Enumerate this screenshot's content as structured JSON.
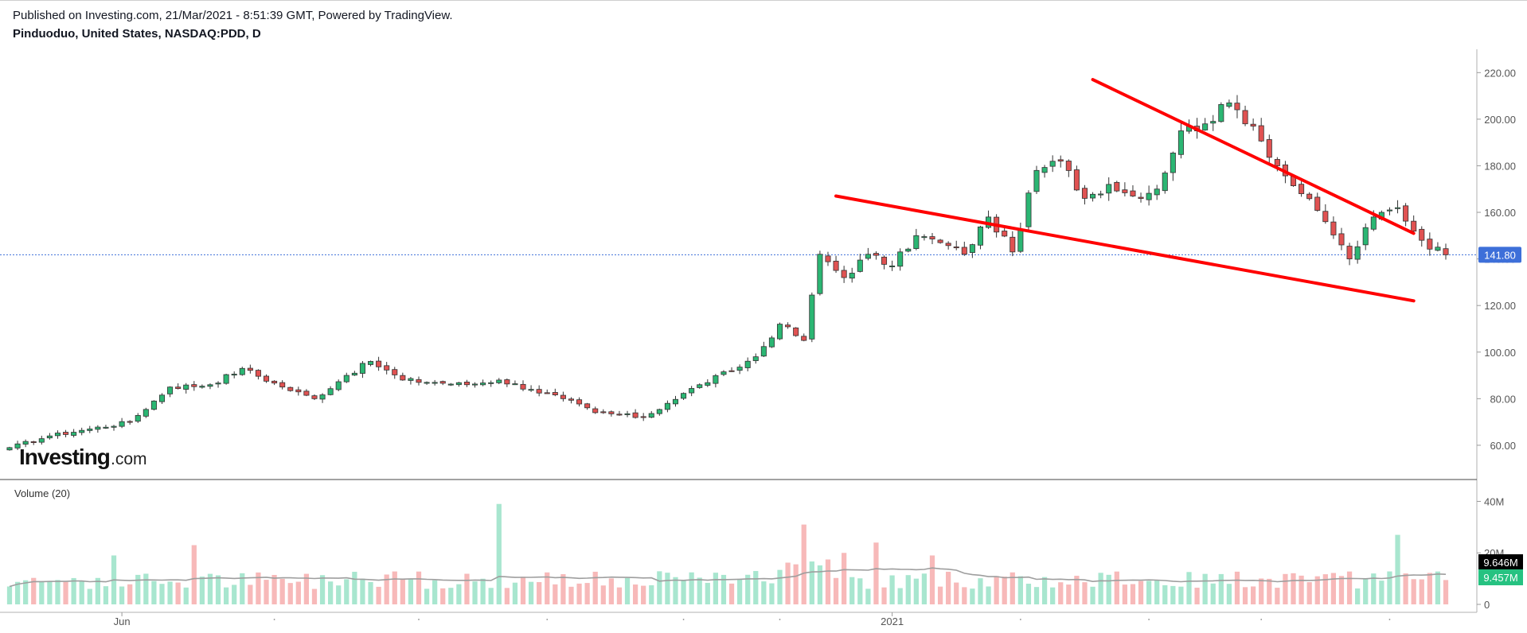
{
  "header": {
    "published": "Published on Investing.com, 21/Mar/2021 - 8:51:39 GMT, Powered by TradingView.",
    "symbol": "Pinduoduo, United States, NASDAQ:PDD, D"
  },
  "logo": {
    "main": "Investing",
    "suffix": ".com"
  },
  "colors": {
    "up": "#26a69a",
    "up_body": "#2bb673",
    "down": "#e05252",
    "vol_up": "#a8e6cf",
    "vol_down": "#f7b9b9",
    "trendline": "#ff0000",
    "price_badge": "#3d6fd9",
    "ma_badge": "#000000",
    "vol_badge": "#26c281",
    "ma_line": "#9e9e9e"
  },
  "chart_data": {
    "type": "candlestick",
    "price_axis": {
      "ticks": [
        "220.00",
        "200.00",
        "180.00",
        "160.00",
        "140.00",
        "120.00",
        "100.00",
        "80.00",
        "60.00"
      ],
      "ylim": [
        47,
        230
      ]
    },
    "volume_axis": {
      "ticks": [
        "40M",
        "20M",
        "0"
      ],
      "ylim": [
        0,
        42
      ]
    },
    "x_ticks": [
      "Jun",
      "2021"
    ],
    "last_price": "141.80",
    "volume_label": "Volume (20)",
    "volume_ma_value": "9.646M",
    "volume_last_value": "9.457M",
    "trendlines": [
      {
        "from": [
          135,
          217
        ],
        "to": [
          175,
          151
        ]
      },
      {
        "from": [
          103,
          167
        ],
        "to": [
          175,
          122
        ]
      }
    ],
    "anchors": [
      [
        0,
        59
      ],
      [
        5,
        64
      ],
      [
        10,
        67
      ],
      [
        15,
        70
      ],
      [
        20,
        85
      ],
      [
        25,
        86
      ],
      [
        29,
        93
      ],
      [
        34,
        85
      ],
      [
        38,
        80
      ],
      [
        42,
        90
      ],
      [
        45,
        96
      ],
      [
        49,
        88
      ],
      [
        53,
        87
      ],
      [
        57,
        86
      ],
      [
        61,
        88
      ],
      [
        65,
        84
      ],
      [
        69,
        80
      ],
      [
        73,
        74
      ],
      [
        79,
        72
      ],
      [
        82,
        78
      ],
      [
        86,
        86
      ],
      [
        90,
        92
      ],
      [
        93,
        98
      ],
      [
        96,
        112
      ],
      [
        99,
        105
      ],
      [
        101,
        142
      ],
      [
        104,
        132
      ],
      [
        107,
        142
      ],
      [
        110,
        137
      ],
      [
        113,
        150
      ],
      [
        116,
        147
      ],
      [
        119,
        142
      ],
      [
        122,
        158
      ],
      [
        125,
        143
      ],
      [
        128,
        178
      ],
      [
        131,
        182
      ],
      [
        134,
        166
      ],
      [
        137,
        172
      ],
      [
        140,
        167
      ],
      [
        143,
        170
      ],
      [
        146,
        195
      ],
      [
        149,
        198
      ],
      [
        152,
        207
      ],
      [
        155,
        197
      ],
      [
        158,
        180
      ],
      [
        161,
        168
      ],
      [
        164,
        156
      ],
      [
        167,
        140
      ],
      [
        170,
        158
      ],
      [
        173,
        162
      ],
      [
        176,
        148
      ],
      [
        179,
        141.8
      ]
    ],
    "n_candles": 180
  }
}
